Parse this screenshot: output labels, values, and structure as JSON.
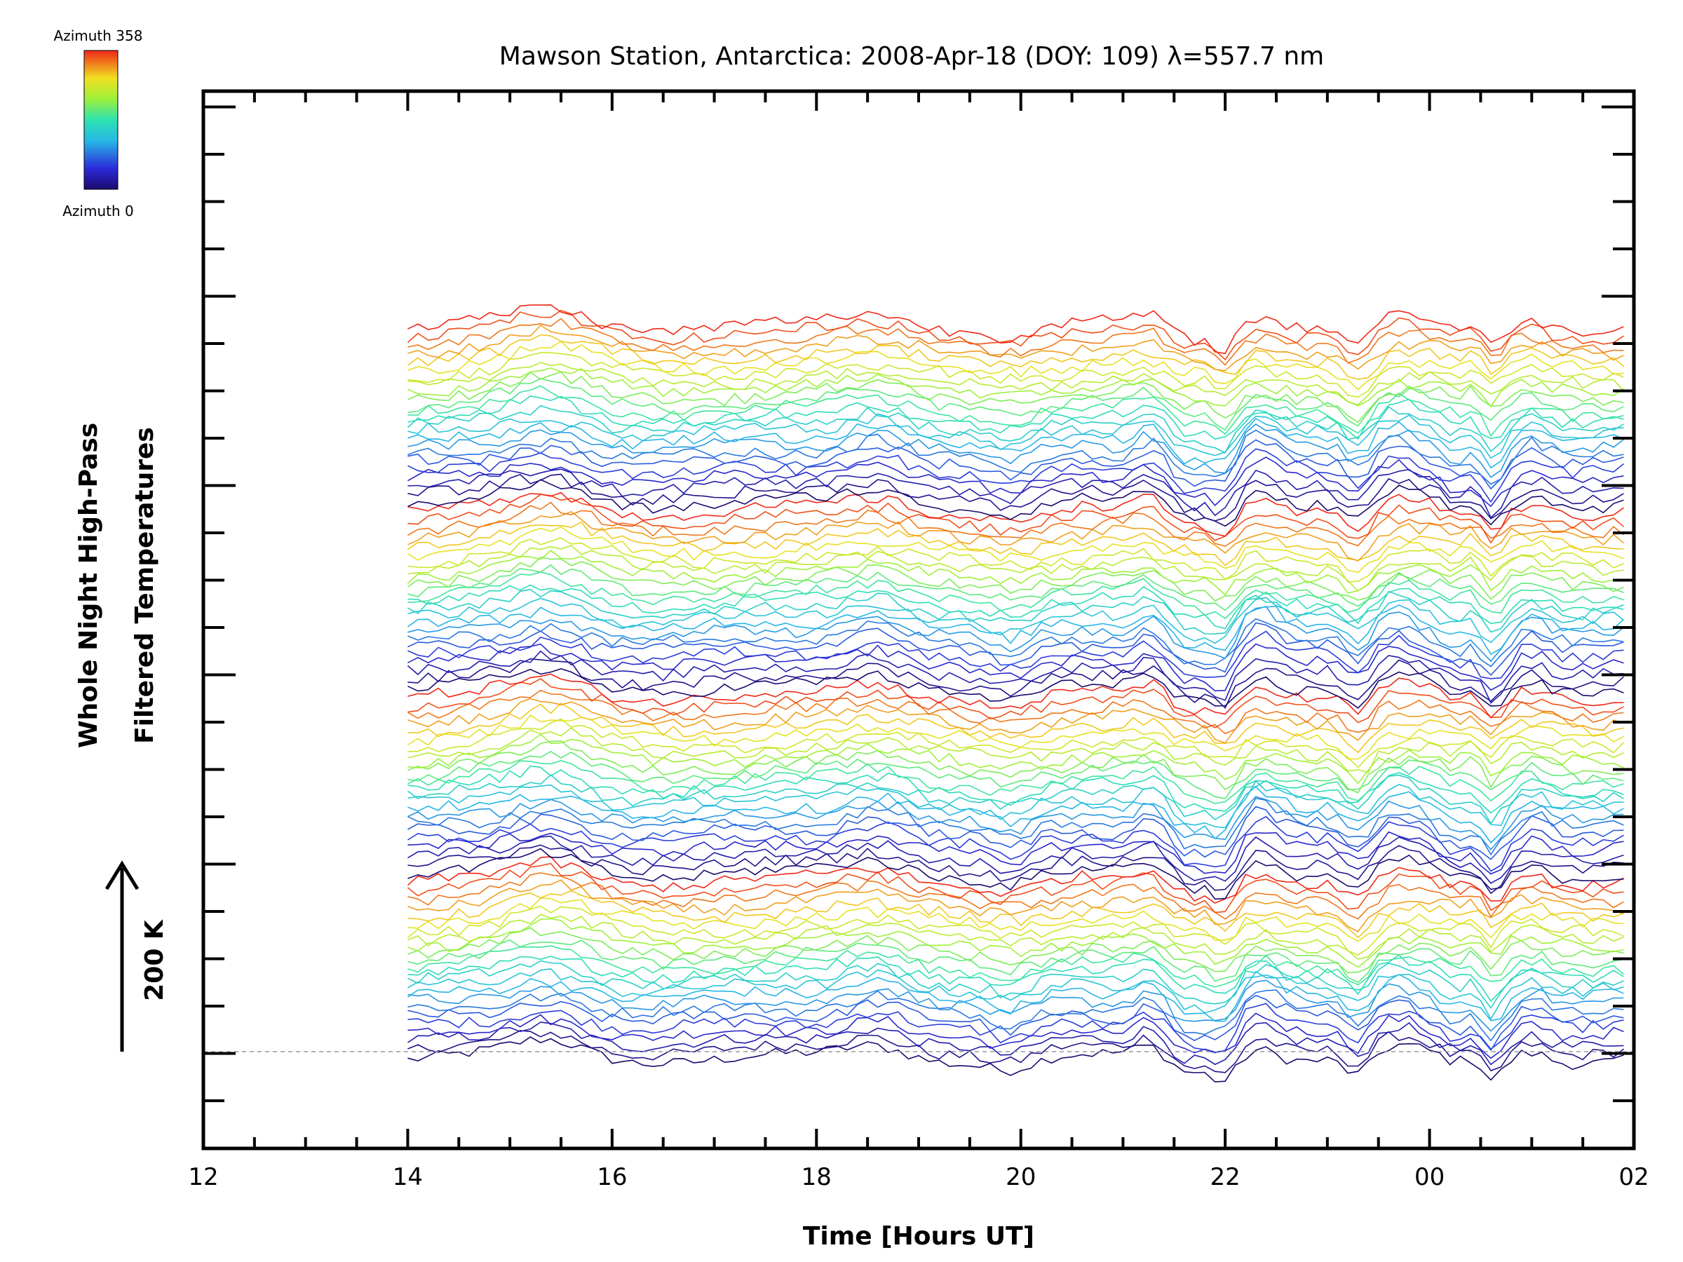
{
  "chart_data": {
    "type": "line",
    "title": "Mawson Station, Antarctica: 2008-Apr-18 (DOY: 109) λ=557.7 nm",
    "xlabel": "Time [Hours UT]",
    "ylabel_line1": "Whole Night High-Pass",
    "ylabel_line2": "Filtered Temperatures",
    "scale_label": "200 K",
    "x_tick_labels": [
      "12",
      "14",
      "16",
      "18",
      "20",
      "22",
      "00",
      "02"
    ],
    "xlim_hours": [
      12,
      26
    ],
    "data_x_range_hours": [
      14,
      25.9
    ],
    "colorbar": {
      "top_label": "Azimuth 358",
      "bottom_label": "Azimuth 0",
      "colormap": "rainbow",
      "range": [
        0,
        358
      ]
    },
    "stack": {
      "groups": 4,
      "azimuth_steps_per_group": 24,
      "note": "stacked time series of azimuthal sectors"
    },
    "baseline_style": "dashed-gray",
    "grid": false,
    "legend": "none"
  }
}
